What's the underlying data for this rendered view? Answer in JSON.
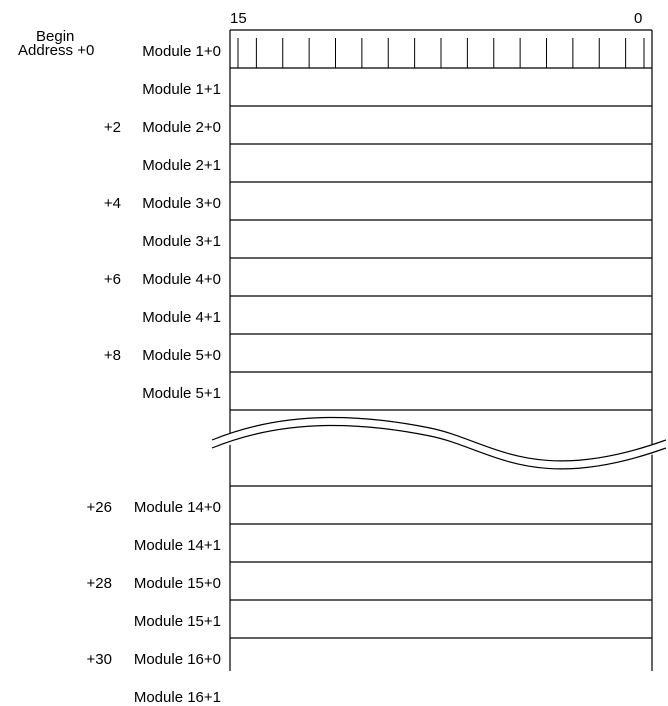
{
  "bit_labels": {
    "high": "15",
    "low": "0"
  },
  "begin_label": {
    "line1": "Begin",
    "line2": "Address +0"
  },
  "rows": [
    {
      "offset": "",
      "module": "Module 1+0"
    },
    {
      "offset": "",
      "module": "Module 1+1"
    },
    {
      "offset": "+2",
      "module": "Module 2+0"
    },
    {
      "offset": "",
      "module": "Module 2+1"
    },
    {
      "offset": "+4",
      "module": "Module 3+0"
    },
    {
      "offset": "",
      "module": "Module 3+1"
    },
    {
      "offset": "+6",
      "module": "Module 4+0"
    },
    {
      "offset": "",
      "module": "Module 4+1"
    },
    {
      "offset": "+8",
      "module": "Module 5+0"
    },
    {
      "offset": "",
      "module": "Module 5+1"
    },
    {
      "offset": "",
      "module": ""
    },
    {
      "offset": "",
      "module": ""
    },
    {
      "offset": "+26",
      "module": "Module 14+0"
    },
    {
      "offset": "",
      "module": "Module 14+1"
    },
    {
      "offset": "+28",
      "module": "Module 15+0"
    },
    {
      "offset": "",
      "module": "Module 15+1"
    },
    {
      "offset": "+30",
      "module": "Module 16+0"
    },
    {
      "offset": "",
      "module": "Module 16+1"
    }
  ]
}
